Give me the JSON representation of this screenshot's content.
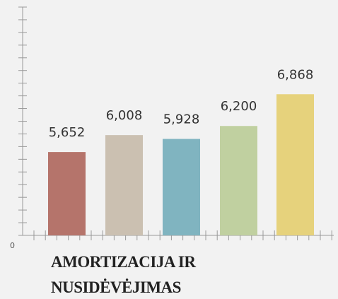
{
  "chart_data": {
    "type": "bar",
    "title_lines": [
      "AMORTIZACIJA IR",
      "NUSIDĖVĖJIMAS"
    ],
    "categories": [
      null,
      null,
      null,
      null,
      null
    ],
    "values": [
      5652,
      6008,
      5928,
      6200,
      6868
    ],
    "value_labels": [
      "5,652",
      "6,008",
      "5,928",
      "6,200",
      "6,868"
    ],
    "colors": [
      "#b5746b",
      "#cbc0b1",
      "#80b4c0",
      "#c0d0a0",
      "#e6d27c"
    ],
    "ylim": [
      3900,
      8700
    ],
    "y_origin_label": "0"
  }
}
